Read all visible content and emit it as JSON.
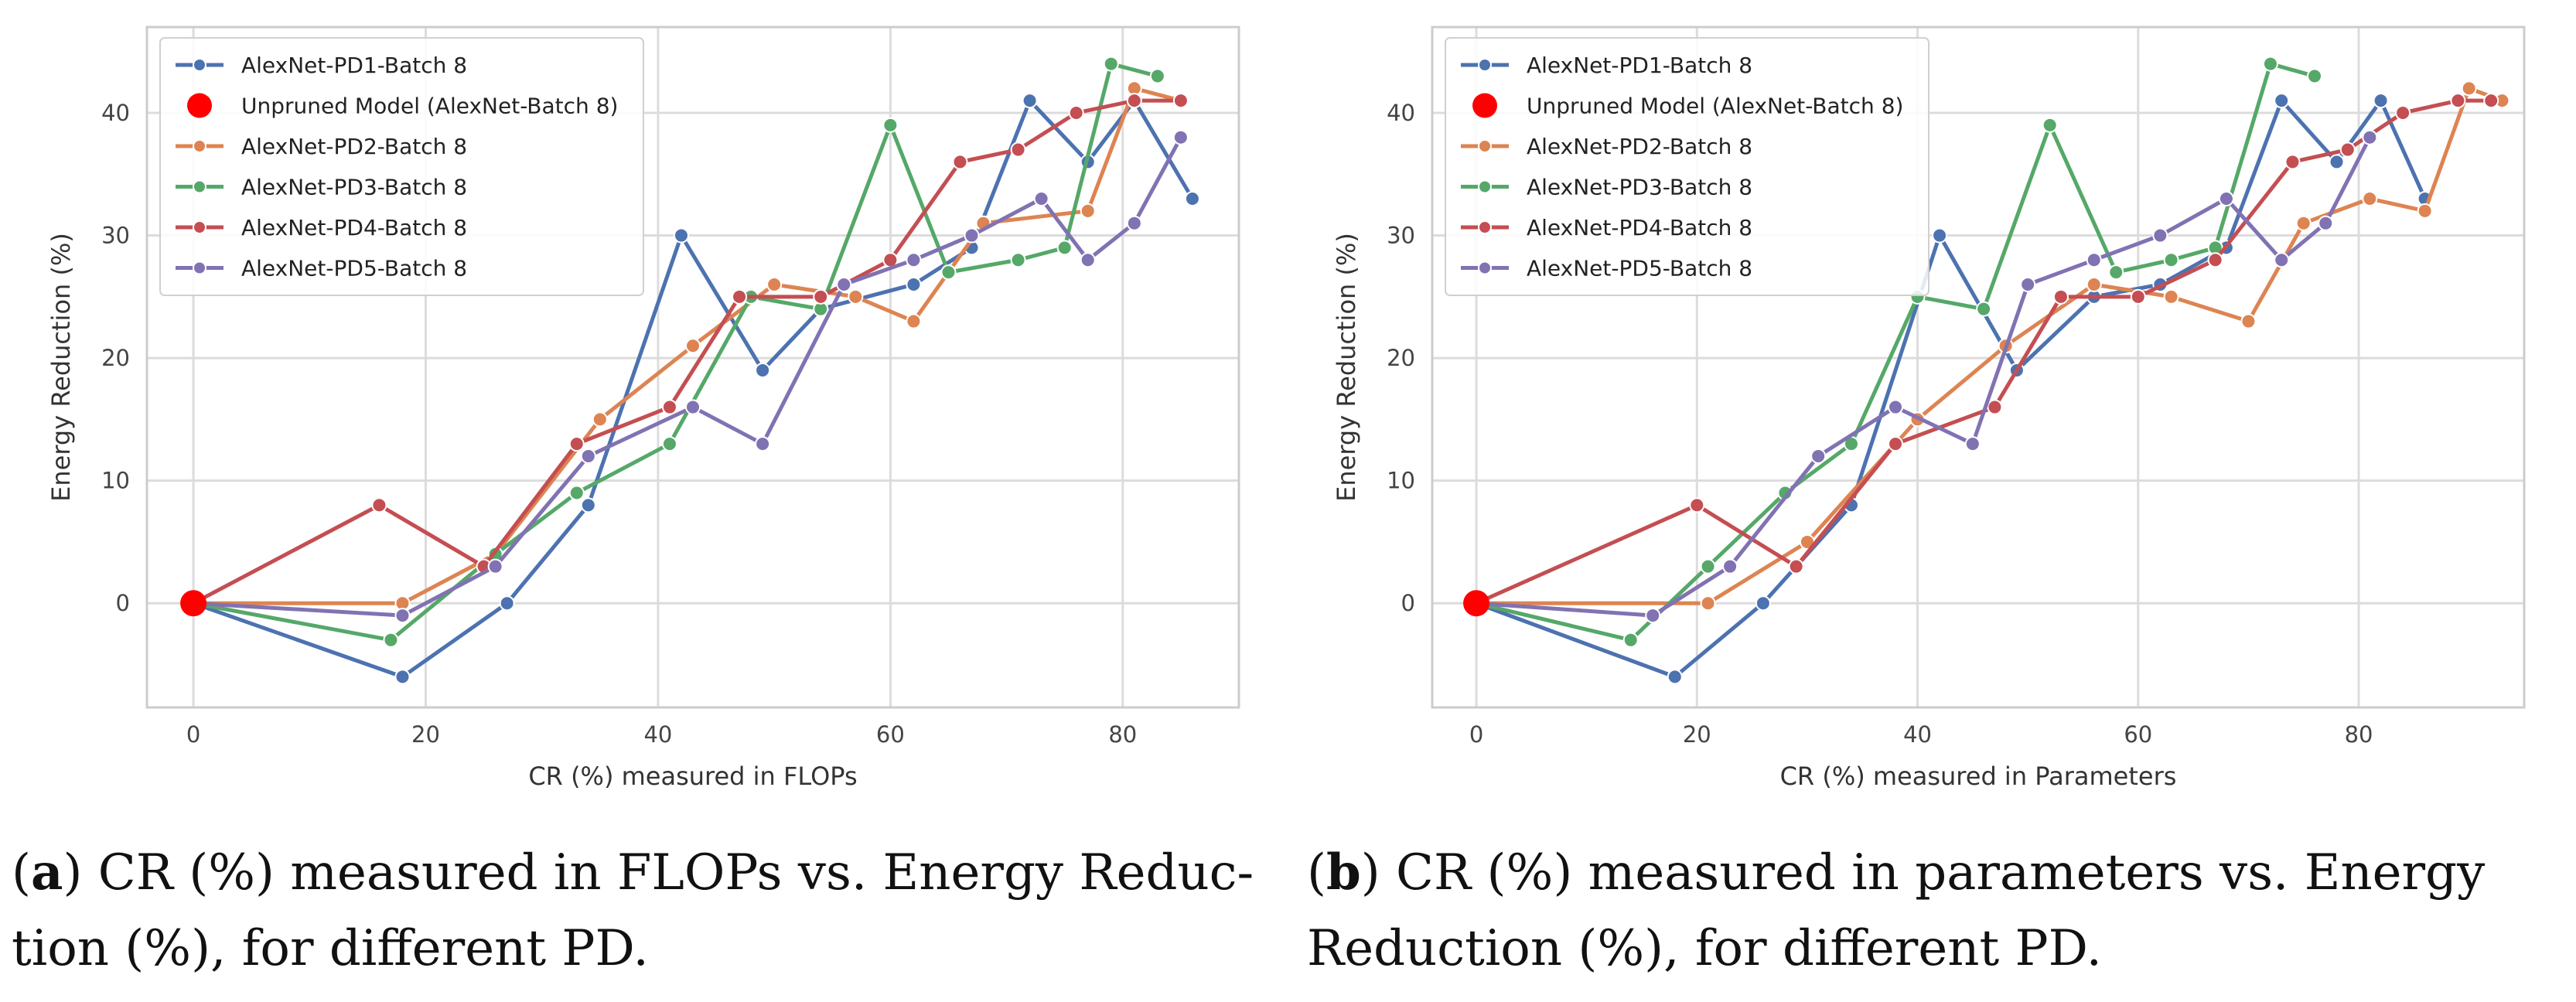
{
  "chart_data": [
    {
      "type": "line",
      "xlabel": "CR (%) measured in FLOPs",
      "ylabel": "Energy Reduction (%)",
      "xlim": [
        -4,
        90
      ],
      "ylim": [
        -8.5,
        47
      ],
      "xticks": [
        0,
        20,
        40,
        60,
        80
      ],
      "yticks": [
        0,
        10,
        20,
        30,
        40
      ],
      "grid": true,
      "legend_position": "top-left",
      "unpruned": {
        "name": "Unpruned Model (AlexNet-Batch 8)",
        "x": 0,
        "y": 0
      },
      "series": [
        {
          "name": "AlexNet-PD1-Batch 8",
          "color": "#4c72b0",
          "x": [
            0,
            18,
            27,
            34,
            42,
            49,
            54,
            62,
            67,
            72,
            77,
            81,
            86
          ],
          "y": [
            0,
            -6,
            0,
            8,
            30,
            19,
            24,
            26,
            29,
            41,
            36,
            41,
            33
          ]
        },
        {
          "name": "AlexNet-PD2-Batch 8",
          "color": "#dd8452",
          "x": [
            0,
            18,
            26,
            35,
            43,
            50,
            57,
            62,
            68,
            77,
            81,
            85
          ],
          "y": [
            0,
            0,
            4,
            15,
            21,
            26,
            25,
            23,
            31,
            32,
            42,
            41
          ]
        },
        {
          "name": "AlexNet-PD3-Batch 8",
          "color": "#55a868",
          "x": [
            0,
            17,
            26,
            33,
            41,
            48,
            54,
            60,
            65,
            71,
            75,
            79,
            83
          ],
          "y": [
            0,
            -3,
            4,
            9,
            13,
            25,
            24,
            39,
            27,
            28,
            29,
            44,
            43
          ]
        },
        {
          "name": "AlexNet-PD4-Batch 8",
          "color": "#c44e52",
          "x": [
            0,
            16,
            25,
            33,
            41,
            47,
            54,
            60,
            66,
            71,
            76,
            81,
            85
          ],
          "y": [
            0,
            8,
            3,
            13,
            16,
            25,
            25,
            28,
            36,
            37,
            40,
            41,
            41
          ]
        },
        {
          "name": "AlexNet-PD5-Batch 8",
          "color": "#8172b3",
          "x": [
            0,
            18,
            26,
            34,
            43,
            49,
            56,
            62,
            67,
            73,
            77,
            81,
            85
          ],
          "y": [
            0,
            -1,
            3,
            12,
            16,
            13,
            26,
            28,
            30,
            33,
            28,
            31,
            38
          ]
        }
      ]
    },
    {
      "type": "line",
      "xlabel": "CR (%) measured in Parameters",
      "ylabel": "Energy Reduction (%)",
      "xlim": [
        -4,
        95
      ],
      "ylim": [
        -8.5,
        47
      ],
      "xticks": [
        0,
        20,
        40,
        60,
        80
      ],
      "yticks": [
        0,
        10,
        20,
        30,
        40
      ],
      "grid": true,
      "legend_position": "top-left",
      "unpruned": {
        "name": "Unpruned Model (AlexNet-Batch 8)",
        "x": 0,
        "y": 0
      },
      "series": [
        {
          "name": "AlexNet-PD1-Batch 8",
          "color": "#4c72b0",
          "x": [
            0,
            18,
            26,
            34,
            42,
            49,
            56,
            62,
            68,
            73,
            78,
            82,
            86
          ],
          "y": [
            0,
            -6,
            0,
            8,
            30,
            19,
            25,
            26,
            29,
            41,
            36,
            41,
            33
          ]
        },
        {
          "name": "AlexNet-PD2-Batch 8",
          "color": "#dd8452",
          "x": [
            0,
            21,
            30,
            40,
            48,
            56,
            63,
            70,
            75,
            81,
            86,
            90,
            93
          ],
          "y": [
            0,
            0,
            5,
            15,
            21,
            26,
            25,
            23,
            31,
            33,
            32,
            42,
            41
          ]
        },
        {
          "name": "AlexNet-PD3-Batch 8",
          "color": "#55a868",
          "x": [
            0,
            14,
            21,
            28,
            34,
            40,
            46,
            52,
            58,
            63,
            67,
            72,
            76
          ],
          "y": [
            0,
            -3,
            3,
            9,
            13,
            25,
            24,
            39,
            27,
            28,
            29,
            44,
            43
          ]
        },
        {
          "name": "AlexNet-PD4-Batch 8",
          "color": "#c44e52",
          "x": [
            0,
            20,
            29,
            38,
            47,
            53,
            60,
            67,
            74,
            79,
            84,
            89,
            92
          ],
          "y": [
            0,
            8,
            3,
            13,
            16,
            25,
            25,
            28,
            36,
            37,
            40,
            41,
            41
          ]
        },
        {
          "name": "AlexNet-PD5-Batch 8",
          "color": "#8172b3",
          "x": [
            0,
            16,
            23,
            31,
            38,
            45,
            50,
            56,
            62,
            68,
            73,
            77,
            81
          ],
          "y": [
            0,
            -1,
            3,
            12,
            16,
            13,
            26,
            28,
            30,
            33,
            28,
            31,
            38
          ]
        }
      ]
    }
  ],
  "captions": [
    {
      "label": "(a)",
      "line1": "CR (%) measured in FLOPs vs. Energy Reduc-",
      "line2": "tion (%), for different PD."
    },
    {
      "label": "(b)",
      "line1": "CR (%) measured in parameters vs.  Energy",
      "line2": "Reduction (%), for different PD."
    }
  ]
}
